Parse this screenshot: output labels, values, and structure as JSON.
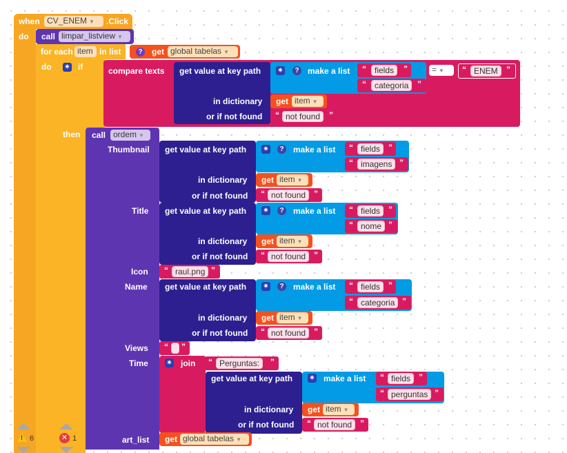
{
  "colors": {
    "event": "#f7a623",
    "procedure": "#5e35b1",
    "text": "#d81b60",
    "list": "#039be5",
    "variable": "#f4511e",
    "dictionary": "#2d1f8f",
    "control": "#fbb425"
  },
  "event": {
    "when": "when",
    "component": "CV_ENEM",
    "event_name": ".Click",
    "do": "do"
  },
  "call_clear": {
    "call": "call",
    "procedure": "limpar_listview"
  },
  "foreach": {
    "for_each": "for each",
    "var": "item",
    "in_list": "in list",
    "get": "get",
    "global_var": "global tabelas",
    "do": "do"
  },
  "if_block": {
    "if": "if",
    "compare_texts": "compare texts",
    "get_value": "get value at key path",
    "make_list": "make a list",
    "key1": "fields",
    "key2": "categoria",
    "in_dictionary": "in dictionary",
    "get": "get",
    "dict_var": "item",
    "or_if_not_found": "or if not found",
    "not_found": "not found",
    "operator": "=",
    "compare_value": "ENEM",
    "then": "then"
  },
  "call_ordem": {
    "call": "call",
    "procedure": "ordem",
    "thumbnail": {
      "label": "Thumbnail",
      "get_value": "get value at key path",
      "make_list": "make a list",
      "key1": "fields",
      "key2": "imagens",
      "in_dictionary": "in dictionary",
      "get": "get",
      "dict_var": "item",
      "or_if_not_found": "or if not found",
      "not_found": "not found"
    },
    "title": {
      "label": "Title",
      "get_value": "get value at key path",
      "make_list": "make a list",
      "key1": "fields",
      "key2": "nome",
      "in_dictionary": "in dictionary",
      "get": "get",
      "dict_var": "item",
      "or_if_not_found": "or if not found",
      "not_found": "not found"
    },
    "icon": {
      "label": "Icon",
      "value": "raul.png"
    },
    "name": {
      "label": "Name",
      "get_value": "get value at key path",
      "make_list": "make a list",
      "key1": "fields",
      "key2": "categoria",
      "in_dictionary": "in dictionary",
      "get": "get",
      "dict_var": "item",
      "or_if_not_found": "or if not found",
      "not_found": "not found"
    },
    "views": {
      "label": "Views",
      "value": ""
    },
    "time": {
      "label": "Time",
      "join": "join",
      "prefix": "Perguntas:",
      "get_value": "get value at key path",
      "make_list": "make a list",
      "key1": "fields",
      "key2": "perguntas",
      "in_dictionary": "in dictionary",
      "get": "get",
      "dict_var": "item",
      "or_if_not_found": "or if not found",
      "not_found": "not found"
    },
    "art_list": {
      "label": "art_list",
      "get": "get",
      "global_var": "global tabelas"
    }
  },
  "status": {
    "warnings": "6",
    "errors": "1"
  }
}
